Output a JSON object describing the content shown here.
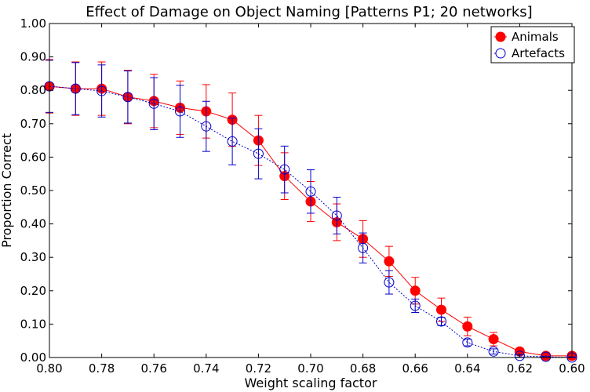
{
  "chart_data": {
    "type": "line",
    "title": "Effect of Damage on Object Naming [Patterns P1; 20 networks]",
    "xlabel": "Weight scaling factor",
    "ylabel": "Proportion Correct",
    "xlim": [
      0.8,
      0.6
    ],
    "ylim": [
      0.0,
      1.0
    ],
    "x_reversed": true,
    "xticks": [
      "0.80",
      "0.78",
      "0.76",
      "0.74",
      "0.72",
      "0.70",
      "0.68",
      "0.66",
      "0.64",
      "0.62",
      "0.60"
    ],
    "yticks": [
      "0.00",
      "0.10",
      "0.20",
      "0.30",
      "0.40",
      "0.50",
      "0.60",
      "0.70",
      "0.80",
      "0.90",
      "1.00"
    ],
    "grid": false,
    "legend_position": "top-right",
    "x": [
      0.8,
      0.79,
      0.78,
      0.77,
      0.76,
      0.75,
      0.74,
      0.73,
      0.72,
      0.71,
      0.7,
      0.69,
      0.68,
      0.67,
      0.66,
      0.65,
      0.64,
      0.63,
      0.62,
      0.61,
      0.6
    ],
    "series": [
      {
        "name": "Animals",
        "color": "#ff0000",
        "marker": "filled-circle",
        "line_style": "solid",
        "values": [
          0.812,
          0.805,
          0.805,
          0.78,
          0.768,
          0.748,
          0.737,
          0.712,
          0.65,
          0.543,
          0.467,
          0.405,
          0.355,
          0.288,
          0.2,
          0.143,
          0.093,
          0.055,
          0.018,
          0.005,
          0.005
        ],
        "errors": [
          0.08,
          0.08,
          0.08,
          0.08,
          0.08,
          0.08,
          0.08,
          0.08,
          0.075,
          0.07,
          0.06,
          0.055,
          0.055,
          0.045,
          0.04,
          0.035,
          0.028,
          0.02,
          0.01,
          0.005,
          0.005
        ]
      },
      {
        "name": "Artefacts",
        "color": "#0000cc",
        "marker": "open-circle",
        "line_style": "dotted",
        "values": [
          0.812,
          0.805,
          0.798,
          0.78,
          0.76,
          0.737,
          0.692,
          0.647,
          0.61,
          0.563,
          0.497,
          0.425,
          0.328,
          0.225,
          0.155,
          0.108,
          0.045,
          0.018,
          0.005,
          0.002,
          0.0
        ],
        "errors": [
          0.078,
          0.078,
          0.078,
          0.078,
          0.078,
          0.078,
          0.075,
          0.07,
          0.075,
          0.07,
          0.065,
          0.055,
          0.045,
          0.035,
          0.02,
          0.012,
          0.01,
          0.008,
          0.004,
          0.002,
          0.002
        ]
      }
    ]
  }
}
